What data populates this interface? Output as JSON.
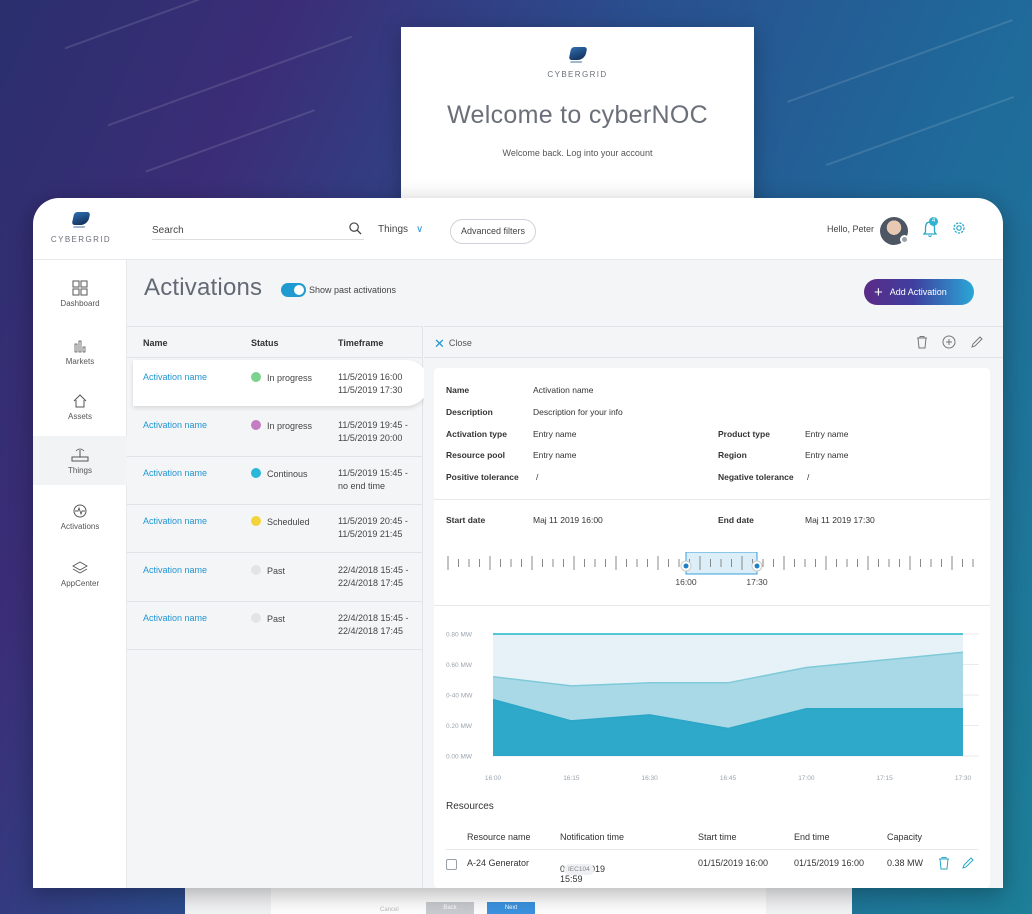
{
  "brand": {
    "name": "CYBERGRID"
  },
  "login": {
    "welcome": "Welcome to cyberNOC",
    "subtitle": "Welcome back. Log into your account"
  },
  "topbar": {
    "search_placeholder": "Search",
    "things_dropdown": "Things",
    "advanced_filters": "Advanced filters",
    "greeting": "Hello, Peter",
    "notification_count": "4"
  },
  "sidebar": {
    "items": [
      {
        "label": "Dashboard",
        "icon": "dashboard-icon"
      },
      {
        "label": "Markets",
        "icon": "markets-icon"
      },
      {
        "label": "Assets",
        "icon": "assets-icon"
      },
      {
        "label": "Things",
        "icon": "things-icon",
        "active": true
      },
      {
        "label": "Activations",
        "icon": "activations-icon"
      },
      {
        "label": "AppCenter",
        "icon": "appcenter-icon"
      }
    ]
  },
  "page": {
    "title": "Activations",
    "toggle_label": "Show past activations",
    "toggle_on": true,
    "add_button": "Add Activation"
  },
  "list": {
    "columns": [
      "Name",
      "Status",
      "Timeframe"
    ],
    "rows": [
      {
        "name": "Activation name",
        "status": "In progress",
        "status_color": "#7ed28f",
        "tf1": "11/5/2019 16:00",
        "tf2": "11/5/2019 17:30",
        "selected": true
      },
      {
        "name": "Activation name",
        "status": "In progress",
        "status_color": "#c47cc2",
        "tf1": "11/5/2019 19:45 -",
        "tf2": "11/5/2019 20:00"
      },
      {
        "name": "Activation name",
        "status": "Continous",
        "status_color": "#2ab8d8",
        "tf1": "11/5/2019 15:45 -",
        "tf2": "no end time"
      },
      {
        "name": "Activation name",
        "status": "Scheduled",
        "status_color": "#f3d33a",
        "tf1": "11/5/2019 20:45 -",
        "tf2": "11/5/2019 21:45"
      },
      {
        "name": "Activation name",
        "status": "Past",
        "status_color": "#e3e4e6",
        "tf1": "22/4/2018 15:45 -",
        "tf2": "22/4/2018 17:45"
      },
      {
        "name": "Activation name",
        "status": "Past",
        "status_color": "#e3e4e6",
        "tf1": "22/4/2018 15:45 -",
        "tf2": "22/4/2018 17:45"
      }
    ]
  },
  "detail": {
    "close_label": "Close",
    "fields": {
      "name_label": "Name",
      "name_value": "Activation name",
      "description_label": "Description",
      "description_value": "Description for your info",
      "activation_type_label": "Activation type",
      "activation_type_value": "Entry name",
      "product_type_label": "Product type",
      "product_type_value": "Entry name",
      "resource_pool_label": "Resource pool",
      "resource_pool_value": "Entry name",
      "region_label": "Region",
      "region_value": "Entry name",
      "positive_tolerance_label": "Positive tolerance",
      "positive_tolerance_value": "/",
      "negative_tolerance_label": "Negative tolerance",
      "negative_tolerance_value": "/"
    },
    "dates": {
      "start_label": "Start date",
      "start_value": "Maj 11 2019 16:00",
      "end_label": "End date",
      "end_value": "Maj 11 2019 17:30",
      "handle_start": "16:00",
      "handle_end": "17:30"
    }
  },
  "chart_data": {
    "type": "area",
    "x": [
      "16:00",
      "16:15",
      "16:30",
      "16:45",
      "17:00",
      "17:15",
      "17:30"
    ],
    "y_ticks": [
      "0.00 MW",
      "0.20 MW",
      "0-40 MW",
      "0.60 MW",
      "0.80 MW"
    ],
    "ylim": [
      0,
      0.8
    ],
    "series": [
      {
        "values": [
          0.8,
          0.8,
          0.8,
          0.8,
          0.8,
          0.8,
          0.8
        ],
        "color": "#1fb7c9"
      },
      {
        "values": [
          0.52,
          0.46,
          0.48,
          0.48,
          0.58,
          0.63,
          0.68
        ],
        "color": "#7fcad8"
      },
      {
        "values": [
          0.37,
          0.23,
          0.27,
          0.18,
          0.31,
          0.31,
          0.31
        ],
        "color": "#2aa6c6"
      }
    ]
  },
  "resources": {
    "title": "Resources",
    "columns": [
      "Resource name",
      "Notification time",
      "Start time",
      "End time",
      "Capacity"
    ],
    "rows": [
      {
        "name": "A-24 Generator",
        "notification": "01/15/2019 15:59",
        "tag": "IEC104",
        "start": "01/15/2019 16:00",
        "end": "01/15/2019 16:00",
        "capacity": "0.38 MW"
      }
    ]
  },
  "footer": {
    "cancel": "Cancel",
    "back": "Back",
    "next": "Next"
  }
}
